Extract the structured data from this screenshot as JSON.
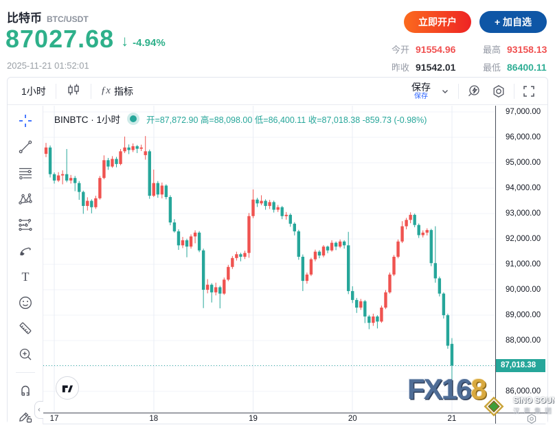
{
  "header": {
    "symbol_name": "比特币",
    "symbol_pair": "BTC/USDT",
    "price": "87027.68",
    "arrow": "↓",
    "change_percent": "-4.94%",
    "timestamp": "2025-11-21 01:52:01",
    "open_account_label": "立即开户",
    "add_watchlist_label": "+ 加自选",
    "stats": [
      {
        "label": "今开",
        "value": "91554.96",
        "style": "color:#f05050"
      },
      {
        "label": "最高",
        "value": "93158.13",
        "style": "color:#f05050"
      },
      {
        "label": "昨收",
        "value": "91542.01",
        "style": "color:#2b2f36"
      },
      {
        "label": "最低",
        "value": "86400.11",
        "style": "color:#2fae95"
      }
    ]
  },
  "colors": {
    "price_green": "#2eb08a",
    "stat_red": "#f05050",
    "accent_blue": "#2962ff",
    "candle_up": "#ef5350",
    "candle_down": "#26a69a",
    "open_button": "#ee2424",
    "watchlist_button": "#0e56a6"
  },
  "toolbar": {
    "interval_label": "1小时",
    "indicators_label": "指标",
    "fx_glyph": "ƒx",
    "save_label": "保存",
    "save_tooltip": "保存"
  },
  "watermarks": {
    "fx168_blue": "FX16",
    "fx168_gold": "8",
    "sino_line1": "SiNO SOUND",
    "sino_line2": "汉声集团"
  },
  "chart_data": {
    "type": "candlestick",
    "symbol_legend": "BINBTC · 1小时",
    "ohlc_text": "开=87,872.90 高=88,098.00 低=86,400.11 收=87,018.38 -859.73 (-0.98%)",
    "up_color": "#ef5350",
    "down_color": "#26a69a",
    "grid_color": "#f0f3fa",
    "vgrid_color": "#e9edf4",
    "price_top": 97243,
    "price_bottom": 85166,
    "current_price": 87018.38,
    "current_price_label": "87,018.38",
    "y_ticks": [
      {
        "price": 97000,
        "label": "97,000.00"
      },
      {
        "price": 96000,
        "label": "96,000.00"
      },
      {
        "price": 95000,
        "label": "95,000.00"
      },
      {
        "price": 94000,
        "label": "94,000.00"
      },
      {
        "price": 93000,
        "label": "93,000.00"
      },
      {
        "price": 92000,
        "label": "92,000.00"
      },
      {
        "price": 91000,
        "label": "91,000.00"
      },
      {
        "price": 90000,
        "label": "90,000.00"
      },
      {
        "price": 89000,
        "label": "89,000.00"
      },
      {
        "price": 88000,
        "label": "88,000.00"
      },
      {
        "price": 87000,
        "label": ""
      },
      {
        "price": 86000,
        "label": "86,000.00"
      }
    ],
    "x_ticks": [
      {
        "index": 2,
        "label": "17"
      },
      {
        "index": 26,
        "label": "18"
      },
      {
        "index": 50,
        "label": "19"
      },
      {
        "index": 74,
        "label": "20"
      },
      {
        "index": 98,
        "label": "21"
      }
    ],
    "candles": [
      [
        95350,
        95780,
        95220,
        95600
      ],
      [
        95600,
        95680,
        94420,
        94550
      ],
      [
        94550,
        94620,
        94180,
        94300
      ],
      [
        94300,
        94630,
        94240,
        94500
      ],
      [
        94500,
        94700,
        94150,
        94550
      ],
      [
        94550,
        95540,
        94230,
        94300
      ],
      [
        94300,
        94520,
        94180,
        94400
      ],
      [
        94400,
        94480,
        93880,
        94200
      ],
      [
        94200,
        94280,
        93540,
        93850
      ],
      [
        93850,
        93900,
        92990,
        93300
      ],
      [
        93300,
        93640,
        93120,
        93500
      ],
      [
        93500,
        93560,
        93010,
        93250
      ],
      [
        93250,
        93700,
        93180,
        93600
      ],
      [
        93600,
        94480,
        93550,
        94400
      ],
      [
        94400,
        95290,
        94350,
        95100
      ],
      [
        95100,
        95190,
        94720,
        94850
      ],
      [
        94850,
        95260,
        94800,
        95150
      ],
      [
        95150,
        95230,
        94820,
        94950
      ],
      [
        94950,
        95540,
        94900,
        95450
      ],
      [
        95450,
        96030,
        95380,
        95600
      ],
      [
        95600,
        95720,
        95340,
        95500
      ],
      [
        95500,
        95760,
        95420,
        95650
      ],
      [
        95650,
        95700,
        95380,
        95550
      ],
      [
        95550,
        95710,
        95460,
        95600
      ],
      [
        95300,
        96050,
        95120,
        95450
      ],
      [
        95450,
        95520,
        93580,
        93700
      ],
      [
        93700,
        94730,
        93650,
        94200
      ],
      [
        94200,
        94280,
        93620,
        93750
      ],
      [
        93750,
        94220,
        93600,
        94100
      ],
      [
        94100,
        94150,
        93560,
        93650
      ],
      [
        93650,
        93720,
        92540,
        92650
      ],
      [
        92650,
        92780,
        92250,
        92300
      ],
      [
        92300,
        92380,
        91570,
        91750
      ],
      [
        91750,
        92080,
        91640,
        91950
      ],
      [
        91950,
        92010,
        91280,
        91700
      ],
      [
        91700,
        92180,
        91620,
        92100
      ],
      [
        92100,
        92340,
        91830,
        92250
      ],
      [
        92250,
        92310,
        91480,
        91550
      ],
      [
        91550,
        91620,
        89280,
        90000
      ],
      [
        90000,
        90420,
        89860,
        90200
      ],
      [
        90200,
        90260,
        89500,
        89900
      ],
      [
        89900,
        90280,
        89780,
        90100
      ],
      [
        90100,
        90160,
        89270,
        89850
      ],
      [
        89850,
        90480,
        89800,
        90400
      ],
      [
        90400,
        90980,
        90340,
        90900
      ],
      [
        90900,
        91330,
        90820,
        91250
      ],
      [
        91250,
        91500,
        91150,
        91400
      ],
      [
        91400,
        91460,
        91120,
        91300
      ],
      [
        91300,
        91540,
        91210,
        91450
      ],
      [
        91450,
        93020,
        91260,
        92900
      ],
      [
        92900,
        93950,
        92820,
        93550
      ],
      [
        93550,
        93620,
        93260,
        93400
      ],
      [
        93400,
        93720,
        93330,
        93500
      ],
      [
        93500,
        93560,
        93150,
        93300
      ],
      [
        93300,
        93540,
        93180,
        93450
      ],
      [
        93450,
        93510,
        93040,
        93150
      ],
      [
        93150,
        93340,
        93060,
        93250
      ],
      [
        93250,
        93300,
        92780,
        92900
      ],
      [
        92900,
        93060,
        92760,
        92950
      ],
      [
        92950,
        93010,
        92480,
        92600
      ],
      [
        92600,
        92660,
        92140,
        92300
      ],
      [
        92300,
        92360,
        91180,
        91300
      ],
      [
        91300,
        91390,
        89950,
        90350
      ],
      [
        90350,
        90680,
        90240,
        90600
      ],
      [
        90600,
        91260,
        90540,
        91200
      ],
      [
        91200,
        91580,
        91120,
        91500
      ],
      [
        91500,
        91560,
        91240,
        91350
      ],
      [
        91350,
        91760,
        91280,
        91700
      ],
      [
        91700,
        91740,
        91440,
        91550
      ],
      [
        91550,
        91950,
        91500,
        91850
      ],
      [
        91850,
        91900,
        91560,
        91700
      ],
      [
        91700,
        91980,
        91640,
        91900
      ],
      [
        91900,
        91950,
        91620,
        91750
      ],
      [
        91750,
        92280,
        89830,
        89950
      ],
      [
        89950,
        90140,
        89480,
        89600
      ],
      [
        89600,
        89680,
        89090,
        89300
      ],
      [
        89300,
        89640,
        89210,
        89550
      ],
      [
        89550,
        89600,
        88690,
        88950
      ],
      [
        88950,
        89010,
        88450,
        88700
      ],
      [
        88700,
        89060,
        88580,
        88950
      ],
      [
        88950,
        89000,
        88480,
        88750
      ],
      [
        88750,
        89380,
        88700,
        89300
      ],
      [
        89300,
        89990,
        89240,
        89900
      ],
      [
        89900,
        90680,
        89850,
        90600
      ],
      [
        90600,
        91370,
        90540,
        91300
      ],
      [
        91300,
        91980,
        91240,
        91900
      ],
      [
        91900,
        92700,
        91840,
        92500
      ],
      [
        92500,
        92830,
        92380,
        92750
      ],
      [
        92750,
        93050,
        92620,
        92950
      ],
      [
        92950,
        93000,
        92460,
        92550
      ],
      [
        92550,
        92610,
        92040,
        92150
      ],
      [
        92150,
        92340,
        92060,
        92250
      ],
      [
        92250,
        92420,
        92140,
        92350
      ],
      [
        92350,
        92400,
        90930,
        91050
      ],
      [
        91050,
        92500,
        90280,
        90450
      ],
      [
        90450,
        90520,
        89740,
        89850
      ],
      [
        89850,
        89900,
        88870,
        89000
      ],
      [
        89000,
        89060,
        87680,
        87800
      ],
      [
        87873,
        88098,
        86400,
        87018
      ]
    ]
  }
}
